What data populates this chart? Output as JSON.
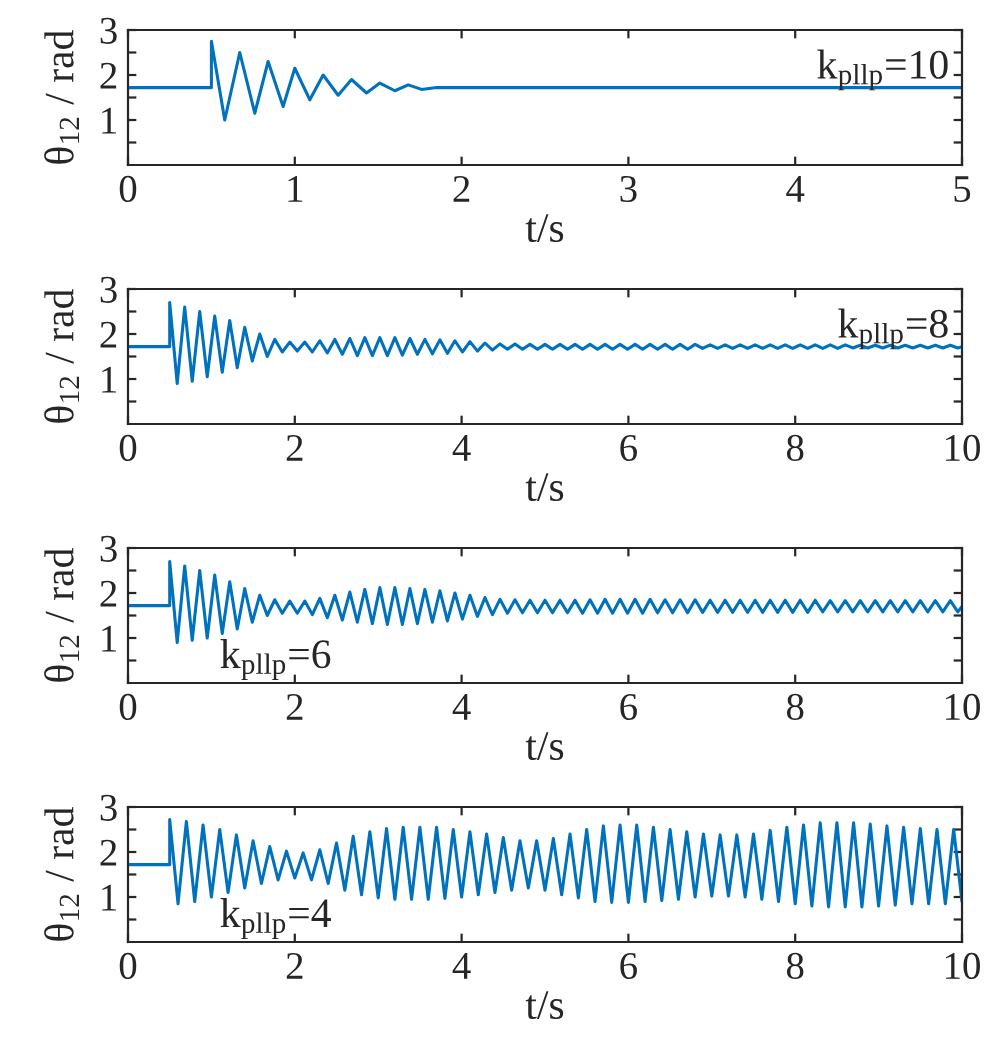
{
  "chart_data": [
    {
      "type": "line",
      "xlabel": "t/s",
      "ylabel": "θ$_{12}$ / rad",
      "annotations": [
        "k$_{pllp}$=10"
      ],
      "xlim": [
        0,
        5
      ],
      "xticks": [
        0,
        1,
        2,
        3,
        4,
        5
      ],
      "ylim": [
        0,
        3
      ],
      "yticks": [
        {
          "value": 0.5,
          "label": null
        },
        1,
        {
          "value": 1.5,
          "label": null
        },
        2,
        {
          "value": 2.5,
          "label": null
        },
        3
      ],
      "grid": false,
      "legend": false,
      "x": [
        0,
        0.5,
        0.5,
        0.58,
        0.67,
        0.76,
        0.84,
        0.93,
        1.0,
        1.09,
        1.17,
        1.26,
        1.34,
        1.43,
        1.51,
        1.6,
        1.68,
        1.76,
        1.85,
        5
      ],
      "series": [
        {
          "color": "#0072bd",
          "values": [
            1.72,
            1.72,
            2.75,
            1.0,
            2.5,
            1.15,
            2.3,
            1.3,
            2.15,
            1.45,
            2.0,
            1.55,
            1.9,
            1.6,
            1.82,
            1.65,
            1.78,
            1.68,
            1.72,
            1.72
          ]
        }
      ]
    },
    {
      "type": "line",
      "xlabel": "t/s",
      "ylabel": "θ$_{12}$ / rad",
      "annotations": [
        "k$_{pllp}$=8"
      ],
      "xlim": [
        0,
        10
      ],
      "xticks": [
        0,
        2,
        4,
        6,
        8,
        10
      ],
      "ylim": [
        0,
        3
      ],
      "yticks": [
        {
          "value": 0.5,
          "label": null
        },
        1,
        {
          "value": 1.5,
          "label": null
        },
        2,
        {
          "value": 2.5,
          "label": null
        },
        3
      ],
      "grid": false,
      "legend": false,
      "x": [
        0,
        0.5,
        0.5,
        0.59,
        0.68,
        0.77,
        0.86,
        0.95,
        1.04,
        1.13,
        1.22,
        1.31,
        1.4,
        1.49,
        1.58,
        1.67,
        1.76,
        1.85,
        1.94,
        2.03,
        2.12,
        2.21,
        2.3,
        2.39,
        2.48,
        2.57,
        2.66,
        2.75,
        2.84,
        2.93,
        3.02,
        3.11,
        3.2,
        3.29,
        3.38,
        3.47,
        3.56,
        3.65,
        3.74,
        3.83,
        3.92,
        4.01,
        4.1,
        4.19,
        4.28,
        4.37,
        4.46,
        4.55,
        4.64,
        4.73,
        4.82,
        4.91,
        5.0,
        5.09,
        5.18,
        5.27,
        5.36,
        5.45,
        5.54,
        5.63,
        5.72,
        5.81,
        5.9,
        5.99,
        6.08,
        6.17,
        6.26,
        6.35,
        6.44,
        6.53,
        6.62,
        6.71,
        6.8,
        6.89,
        6.98,
        7.07,
        7.16,
        7.25,
        7.34,
        7.43,
        7.52,
        7.61,
        7.7,
        7.79,
        7.88,
        7.97,
        8.06,
        8.15,
        8.24,
        8.33,
        8.42,
        8.51,
        8.6,
        8.69,
        8.78,
        8.87,
        8.96,
        9.05,
        9.14,
        9.23,
        9.32,
        9.41,
        9.5,
        9.59,
        9.68,
        9.77,
        9.86,
        9.95,
        10
      ],
      "series": [
        {
          "color": "#0072bd",
          "values": [
            1.72,
            1.72,
            2.7,
            0.9,
            2.6,
            0.95,
            2.5,
            1.05,
            2.4,
            1.15,
            2.3,
            1.25,
            2.15,
            1.4,
            2.0,
            1.5,
            1.88,
            1.6,
            1.82,
            1.62,
            1.82,
            1.6,
            1.85,
            1.58,
            1.88,
            1.55,
            1.9,
            1.52,
            1.92,
            1.52,
            1.92,
            1.52,
            1.92,
            1.53,
            1.9,
            1.55,
            1.88,
            1.56,
            1.87,
            1.57,
            1.85,
            1.6,
            1.83,
            1.62,
            1.8,
            1.64,
            1.78,
            1.66,
            1.78,
            1.66,
            1.77,
            1.66,
            1.77,
            1.66,
            1.77,
            1.66,
            1.77,
            1.66,
            1.77,
            1.66,
            1.77,
            1.66,
            1.77,
            1.66,
            1.77,
            1.66,
            1.77,
            1.66,
            1.77,
            1.66,
            1.77,
            1.66,
            1.77,
            1.68,
            1.76,
            1.68,
            1.76,
            1.68,
            1.76,
            1.68,
            1.76,
            1.68,
            1.76,
            1.68,
            1.76,
            1.68,
            1.76,
            1.68,
            1.76,
            1.68,
            1.76,
            1.68,
            1.76,
            1.69,
            1.75,
            1.69,
            1.75,
            1.69,
            1.75,
            1.69,
            1.75,
            1.69,
            1.75,
            1.69,
            1.75,
            1.69,
            1.75,
            1.69,
            1.72
          ]
        }
      ]
    },
    {
      "type": "line",
      "xlabel": "t/s",
      "ylabel": "θ$_{12}$ / rad",
      "annotations": [
        "k$_{pllp}$=6"
      ],
      "xlim": [
        0,
        10
      ],
      "xticks": [
        0,
        2,
        4,
        6,
        8,
        10
      ],
      "ylim": [
        0,
        3
      ],
      "yticks": [
        {
          "value": 0.5,
          "label": null
        },
        1,
        {
          "value": 1.5,
          "label": null
        },
        2,
        {
          "value": 2.5,
          "label": null
        },
        3
      ],
      "grid": false,
      "legend": false,
      "x": [
        0,
        0.5,
        0.5,
        0.59,
        0.68,
        0.77,
        0.86,
        0.95,
        1.04,
        1.13,
        1.22,
        1.31,
        1.4,
        1.49,
        1.58,
        1.67,
        1.76,
        1.85,
        1.94,
        2.03,
        2.12,
        2.21,
        2.3,
        2.39,
        2.48,
        2.57,
        2.66,
        2.75,
        2.84,
        2.93,
        3.02,
        3.11,
        3.2,
        3.29,
        3.38,
        3.47,
        3.56,
        3.65,
        3.74,
        3.83,
        3.92,
        4.01,
        4.1,
        4.19,
        4.28,
        4.37,
        4.46,
        4.55,
        4.64,
        4.73,
        4.82,
        4.91,
        5.0,
        5.09,
        5.18,
        5.27,
        5.36,
        5.45,
        5.54,
        5.63,
        5.72,
        5.81,
        5.9,
        5.99,
        6.08,
        6.17,
        6.26,
        6.35,
        6.44,
        6.53,
        6.62,
        6.71,
        6.8,
        6.89,
        6.98,
        7.07,
        7.16,
        7.25,
        7.34,
        7.43,
        7.52,
        7.61,
        7.7,
        7.79,
        7.88,
        7.97,
        8.06,
        8.15,
        8.24,
        8.33,
        8.42,
        8.51,
        8.6,
        8.69,
        8.78,
        8.87,
        8.96,
        9.05,
        9.14,
        9.23,
        9.32,
        9.41,
        9.5,
        9.59,
        9.68,
        9.77,
        9.86,
        9.95,
        10
      ],
      "series": [
        {
          "color": "#0072bd",
          "values": [
            1.72,
            1.72,
            2.7,
            0.9,
            2.6,
            0.95,
            2.5,
            1.0,
            2.4,
            1.1,
            2.25,
            1.2,
            2.1,
            1.35,
            1.95,
            1.5,
            1.85,
            1.55,
            1.82,
            1.55,
            1.82,
            1.52,
            1.88,
            1.45,
            1.95,
            1.4,
            2.02,
            1.35,
            2.08,
            1.32,
            2.12,
            1.3,
            2.12,
            1.3,
            2.1,
            1.32,
            2.08,
            1.35,
            2.05,
            1.38,
            2.0,
            1.42,
            1.95,
            1.48,
            1.9,
            1.52,
            1.86,
            1.55,
            1.85,
            1.56,
            1.84,
            1.56,
            1.84,
            1.56,
            1.84,
            1.56,
            1.84,
            1.55,
            1.85,
            1.55,
            1.86,
            1.55,
            1.86,
            1.55,
            1.86,
            1.55,
            1.86,
            1.56,
            1.85,
            1.56,
            1.85,
            1.56,
            1.85,
            1.57,
            1.84,
            1.57,
            1.84,
            1.57,
            1.84,
            1.57,
            1.84,
            1.57,
            1.84,
            1.57,
            1.84,
            1.57,
            1.84,
            1.57,
            1.84,
            1.58,
            1.83,
            1.58,
            1.83,
            1.58,
            1.83,
            1.58,
            1.83,
            1.58,
            1.83,
            1.58,
            1.83,
            1.58,
            1.83,
            1.58,
            1.83,
            1.58,
            1.83,
            1.58,
            1.7
          ]
        }
      ]
    },
    {
      "type": "line",
      "xlabel": "t/s",
      "ylabel": "θ$_{12}$ / rad",
      "annotations": [
        "k$_{pllp}$=4"
      ],
      "xlim": [
        0,
        10
      ],
      "xticks": [
        0,
        2,
        4,
        6,
        8,
        10
      ],
      "ylim": [
        0,
        3
      ],
      "yticks": [
        {
          "value": 0.5,
          "label": null
        },
        1,
        {
          "value": 1.5,
          "label": null
        },
        2,
        {
          "value": 2.5,
          "label": null
        },
        3
      ],
      "grid": false,
      "legend": false,
      "x": [
        0,
        0.5,
        0.5,
        0.6,
        0.7,
        0.8,
        0.9,
        1.0,
        1.1,
        1.2,
        1.3,
        1.4,
        1.5,
        1.6,
        1.7,
        1.8,
        1.9,
        2.0,
        2.1,
        2.2,
        2.3,
        2.4,
        2.5,
        2.6,
        2.7,
        2.8,
        2.9,
        3.0,
        3.1,
        3.2,
        3.3,
        3.4,
        3.5,
        3.6,
        3.7,
        3.8,
        3.9,
        4.0,
        4.1,
        4.2,
        4.3,
        4.4,
        4.5,
        4.6,
        4.7,
        4.8,
        4.9,
        5.0,
        5.1,
        5.2,
        5.3,
        5.4,
        5.5,
        5.6,
        5.7,
        5.8,
        5.9,
        6.0,
        6.1,
        6.2,
        6.3,
        6.4,
        6.5,
        6.6,
        6.7,
        6.8,
        6.9,
        7.0,
        7.1,
        7.2,
        7.3,
        7.4,
        7.5,
        7.6,
        7.7,
        7.8,
        7.9,
        8.0,
        8.1,
        8.2,
        8.3,
        8.4,
        8.5,
        8.6,
        8.7,
        8.8,
        8.9,
        9.0,
        9.1,
        9.2,
        9.3,
        9.4,
        9.5,
        9.6,
        9.7,
        9.8,
        9.9,
        10.0
      ],
      "series": [
        {
          "color": "#0072bd",
          "values": [
            1.72,
            1.72,
            2.72,
            0.85,
            2.68,
            0.9,
            2.6,
            1.0,
            2.5,
            1.1,
            2.38,
            1.2,
            2.25,
            1.3,
            2.12,
            1.38,
            2.02,
            1.42,
            1.98,
            1.38,
            2.05,
            1.3,
            2.2,
            1.15,
            2.35,
            1.05,
            2.45,
            0.98,
            2.52,
            0.95,
            2.55,
            0.95,
            2.55,
            0.95,
            2.55,
            0.97,
            2.5,
            1.0,
            2.45,
            1.05,
            2.4,
            1.1,
            2.32,
            1.15,
            2.25,
            1.2,
            2.25,
            1.15,
            2.3,
            1.05,
            2.4,
            0.98,
            2.5,
            0.9,
            2.58,
            0.88,
            2.6,
            0.88,
            2.6,
            0.9,
            2.55,
            0.92,
            2.5,
            0.95,
            2.45,
            1.0,
            2.4,
            1.02,
            2.38,
            1.02,
            2.38,
            1.0,
            2.4,
            0.95,
            2.48,
            0.9,
            2.55,
            0.85,
            2.6,
            0.8,
            2.65,
            0.78,
            2.65,
            0.78,
            2.65,
            0.78,
            2.62,
            0.8,
            2.58,
            0.82,
            2.55,
            0.85,
            2.52,
            0.85,
            2.5,
            0.85,
            2.5,
            0.9
          ]
        }
      ]
    }
  ]
}
